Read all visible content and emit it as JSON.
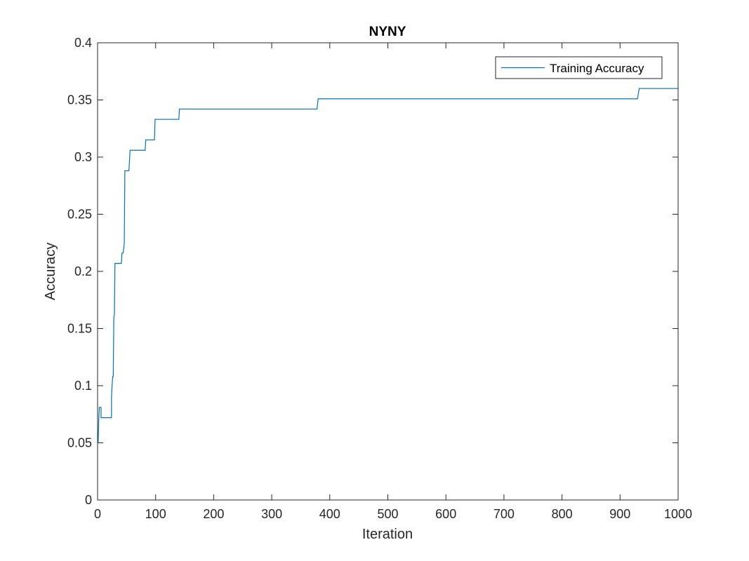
{
  "chart_data": {
    "type": "line",
    "title": "NYNY",
    "xlabel": "Iteration",
    "ylabel": "Accuracy",
    "xlim": [
      0,
      1000
    ],
    "ylim": [
      0,
      0.4
    ],
    "x_ticks": [
      "0",
      "100",
      "200",
      "300",
      "400",
      "500",
      "600",
      "700",
      "800",
      "900",
      "1000"
    ],
    "y_ticks": [
      "0",
      "0.05",
      "0.1",
      "0.15",
      "0.2",
      "0.25",
      "0.3",
      "0.35",
      "0.4"
    ],
    "grid": false,
    "legend_position": "top-right",
    "series": [
      {
        "name": "Training Accuracy",
        "color": "#0072BD",
        "x": [
          1,
          2,
          3,
          4,
          4,
          6,
          6,
          24,
          24,
          25,
          26,
          27,
          28,
          29,
          30,
          37,
          38,
          41,
          42,
          43,
          44,
          45,
          46,
          47,
          48,
          53,
          54,
          56,
          57,
          82,
          83,
          98,
          99,
          140,
          141,
          378,
          380,
          930,
          933,
          1000
        ],
        "y": [
          0.05,
          0.07,
          0.081,
          0.081,
          0.081,
          0.081,
          0.072,
          0.072,
          0.09,
          0.1,
          0.108,
          0.108,
          0.16,
          0.162,
          0.207,
          0.207,
          0.207,
          0.207,
          0.216,
          0.216,
          0.216,
          0.22,
          0.225,
          0.288,
          0.288,
          0.288,
          0.288,
          0.306,
          0.306,
          0.306,
          0.315,
          0.315,
          0.333,
          0.333,
          0.342,
          0.342,
          0.351,
          0.351,
          0.36,
          0.36
        ]
      }
    ]
  }
}
